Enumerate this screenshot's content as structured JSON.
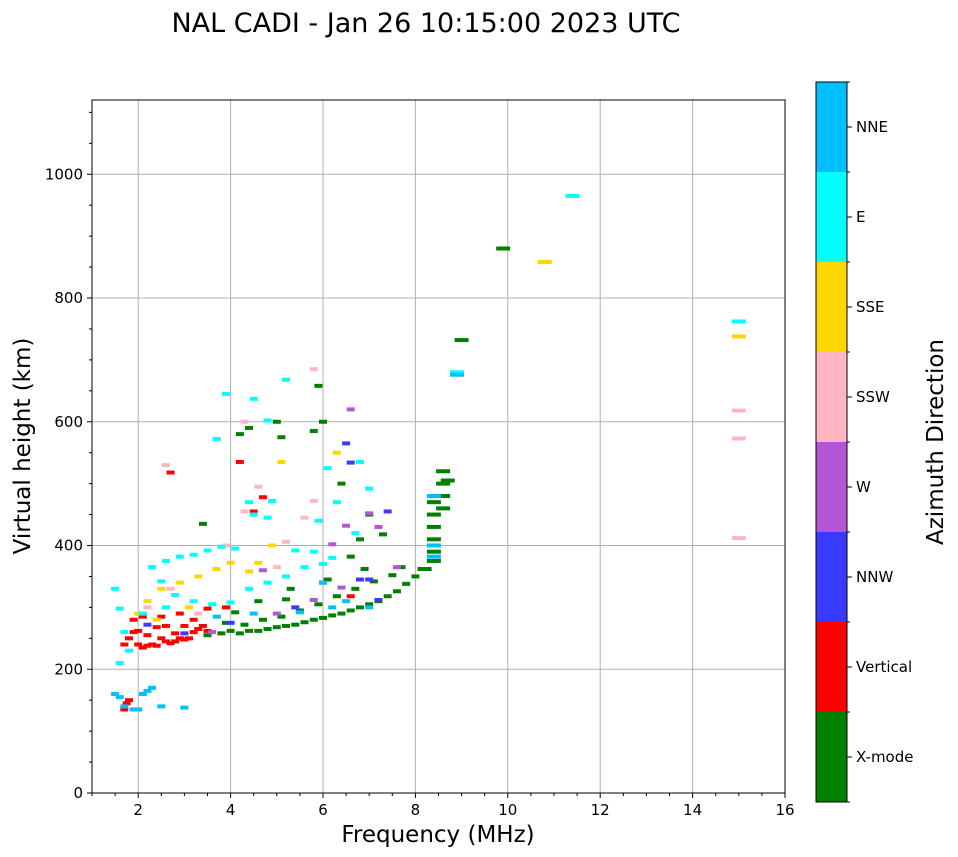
{
  "chart_data": {
    "type": "scatter",
    "title": "NAL CADI - Jan 26 10:15:00 2023 UTC",
    "xlabel": "Frequency (MHz)",
    "ylabel": "Virtual height (km)",
    "xlim": [
      1,
      16
    ],
    "ylim": [
      0,
      1120
    ],
    "x_ticks": [
      "2",
      "4",
      "6",
      "8",
      "10",
      "12",
      "14",
      "16"
    ],
    "x_tick_values": [
      2,
      4,
      6,
      8,
      10,
      12,
      14,
      16
    ],
    "y_ticks": [
      "0",
      "200",
      "400",
      "600",
      "800",
      "1000"
    ],
    "y_tick_values": [
      0,
      200,
      400,
      600,
      800,
      1000
    ],
    "grid": true,
    "colorbar": {
      "label": "Azimuth Direction",
      "categories": [
        {
          "name": "X-mode",
          "color": "#008000"
        },
        {
          "name": "Vertical",
          "color": "#ff0000"
        },
        {
          "name": "NNW",
          "color": "#3a3aff"
        },
        {
          "name": "W",
          "color": "#b455d6"
        },
        {
          "name": "SSW",
          "color": "#ffb6c1"
        },
        {
          "name": "SSE",
          "color": "#ffd700"
        },
        {
          "name": "E",
          "color": "#00ffff"
        },
        {
          "name": "NNE",
          "color": "#00bfff"
        }
      ]
    },
    "series": [
      {
        "name": "X-mode",
        "color": "#008000",
        "points": [
          [
            3.5,
            255
          ],
          [
            3.8,
            258
          ],
          [
            4.0,
            262
          ],
          [
            4.2,
            258
          ],
          [
            4.4,
            262
          ],
          [
            4.6,
            262
          ],
          [
            4.8,
            265
          ],
          [
            5.0,
            268
          ],
          [
            5.2,
            270
          ],
          [
            5.4,
            272
          ],
          [
            5.6,
            276
          ],
          [
            5.8,
            280
          ],
          [
            6.0,
            283
          ],
          [
            6.2,
            287
          ],
          [
            6.4,
            290
          ],
          [
            6.6,
            295
          ],
          [
            6.8,
            300
          ],
          [
            7.0,
            305
          ],
          [
            7.2,
            310
          ],
          [
            7.4,
            318
          ],
          [
            7.6,
            326
          ],
          [
            7.8,
            338
          ],
          [
            8.0,
            350
          ],
          [
            8.2,
            362
          ],
          [
            8.4,
            375
          ],
          [
            8.4,
            390
          ],
          [
            8.4,
            410
          ],
          [
            8.4,
            430
          ],
          [
            8.4,
            450
          ],
          [
            8.4,
            470
          ],
          [
            8.6,
            480
          ],
          [
            8.6,
            500
          ],
          [
            8.6,
            520
          ],
          [
            8.6,
            460
          ],
          [
            4.3,
            272
          ],
          [
            4.7,
            280
          ],
          [
            5.1,
            285
          ],
          [
            5.5,
            295
          ],
          [
            5.9,
            305
          ],
          [
            6.3,
            318
          ],
          [
            6.7,
            330
          ],
          [
            7.1,
            342
          ],
          [
            7.5,
            352
          ],
          [
            7.7,
            365
          ],
          [
            3.4,
            435
          ],
          [
            4.2,
            580
          ],
          [
            4.4,
            590
          ],
          [
            5.0,
            600
          ],
          [
            5.1,
            575
          ],
          [
            5.8,
            585
          ],
          [
            5.9,
            658
          ],
          [
            6.0,
            600
          ],
          [
            6.4,
            500
          ],
          [
            6.8,
            410
          ],
          [
            7.3,
            418
          ],
          [
            7.0,
            450
          ],
          [
            8.7,
            505
          ],
          [
            9.0,
            732
          ],
          [
            9.9,
            880
          ],
          [
            4.6,
            310
          ],
          [
            5.3,
            330
          ],
          [
            6.1,
            345
          ],
          [
            6.9,
            362
          ],
          [
            3.9,
            275
          ],
          [
            4.1,
            292
          ],
          [
            5.2,
            313
          ],
          [
            6.6,
            382
          ]
        ]
      },
      {
        "name": "Vertical",
        "color": "#ff0000",
        "points": [
          [
            1.7,
            135
          ],
          [
            1.75,
            145
          ],
          [
            1.8,
            150
          ],
          [
            1.7,
            240
          ],
          [
            1.8,
            250
          ],
          [
            1.9,
            260
          ],
          [
            2.0,
            240
          ],
          [
            2.1,
            235
          ],
          [
            2.2,
            238
          ],
          [
            2.3,
            240
          ],
          [
            2.4,
            238
          ],
          [
            2.5,
            250
          ],
          [
            2.6,
            245
          ],
          [
            2.7,
            242
          ],
          [
            2.8,
            245
          ],
          [
            2.9,
            250
          ],
          [
            3.0,
            248
          ],
          [
            3.1,
            250
          ],
          [
            3.2,
            260
          ],
          [
            3.3,
            265
          ],
          [
            3.4,
            270
          ],
          [
            3.5,
            262
          ],
          [
            2.0,
            262
          ],
          [
            2.2,
            255
          ],
          [
            2.4,
            268
          ],
          [
            2.6,
            270
          ],
          [
            2.8,
            258
          ],
          [
            3.0,
            270
          ],
          [
            3.2,
            280
          ],
          [
            1.9,
            280
          ],
          [
            2.1,
            285
          ],
          [
            2.5,
            285
          ],
          [
            2.9,
            290
          ],
          [
            3.5,
            298
          ],
          [
            3.9,
            300
          ],
          [
            2.7,
            518
          ],
          [
            4.2,
            535
          ],
          [
            4.5,
            455
          ],
          [
            4.7,
            478
          ],
          [
            6.6,
            318
          ]
        ]
      },
      {
        "name": "NNW",
        "color": "#3a3aff",
        "points": [
          [
            6.6,
            534
          ],
          [
            6.8,
            345
          ],
          [
            7.2,
            312
          ],
          [
            7.4,
            455
          ],
          [
            6.5,
            565
          ],
          [
            4.0,
            275
          ],
          [
            3.0,
            258
          ],
          [
            2.2,
            272
          ],
          [
            5.4,
            300
          ],
          [
            7.0,
            345
          ],
          [
            6.0,
            340
          ]
        ]
      },
      {
        "name": "W",
        "color": "#b455d6",
        "points": [
          [
            6.6,
            620
          ],
          [
            6.5,
            432
          ],
          [
            7.2,
            430
          ],
          [
            7.0,
            452
          ],
          [
            6.2,
            402
          ],
          [
            5.8,
            312
          ],
          [
            6.4,
            332
          ],
          [
            7.6,
            365
          ],
          [
            5.0,
            290
          ],
          [
            3.6,
            260
          ],
          [
            4.7,
            360
          ]
        ]
      },
      {
        "name": "SSW",
        "color": "#ffb6c1",
        "points": [
          [
            5.8,
            685
          ],
          [
            5.8,
            472
          ],
          [
            5.6,
            445
          ],
          [
            5.2,
            406
          ],
          [
            4.3,
            600
          ],
          [
            4.6,
            495
          ],
          [
            2.6,
            530
          ],
          [
            15.0,
            618
          ],
          [
            15.0,
            573
          ],
          [
            15.0,
            412
          ],
          [
            3.9,
            400
          ],
          [
            4.3,
            455
          ],
          [
            2.2,
            300
          ],
          [
            2.7,
            330
          ],
          [
            3.3,
            290
          ],
          [
            5.0,
            365
          ]
        ]
      },
      {
        "name": "SSE",
        "color": "#ffd700",
        "points": [
          [
            10.8,
            858
          ],
          [
            15.0,
            738
          ],
          [
            6.3,
            550
          ],
          [
            5.1,
            535
          ],
          [
            2.2,
            310
          ],
          [
            2.5,
            330
          ],
          [
            2.9,
            340
          ],
          [
            3.3,
            350
          ],
          [
            3.7,
            362
          ],
          [
            4.0,
            372
          ],
          [
            4.4,
            358
          ],
          [
            4.9,
            400
          ],
          [
            2.0,
            290
          ],
          [
            2.4,
            280
          ],
          [
            3.1,
            300
          ],
          [
            4.6,
            372
          ]
        ]
      },
      {
        "name": "E",
        "color": "#00ffff",
        "points": [
          [
            11.4,
            965
          ],
          [
            15.0,
            762
          ],
          [
            8.9,
            680
          ],
          [
            3.9,
            645
          ],
          [
            3.7,
            572
          ],
          [
            4.5,
            637
          ],
          [
            5.2,
            668
          ],
          [
            4.8,
            602
          ],
          [
            6.8,
            535
          ],
          [
            6.1,
            525
          ],
          [
            7.0,
            492
          ],
          [
            4.9,
            472
          ],
          [
            4.4,
            470
          ],
          [
            2.3,
            365
          ],
          [
            2.6,
            375
          ],
          [
            2.9,
            382
          ],
          [
            3.2,
            385
          ],
          [
            3.5,
            392
          ],
          [
            3.8,
            398
          ],
          [
            4.1,
            395
          ],
          [
            4.5,
            450
          ],
          [
            4.8,
            445
          ],
          [
            5.4,
            392
          ],
          [
            5.8,
            390
          ],
          [
            6.2,
            380
          ],
          [
            2.5,
            342
          ],
          [
            2.8,
            320
          ],
          [
            3.2,
            310
          ],
          [
            3.6,
            305
          ],
          [
            4.0,
            308
          ],
          [
            4.4,
            330
          ],
          [
            4.8,
            340
          ],
          [
            5.2,
            350
          ],
          [
            5.6,
            365
          ],
          [
            6.0,
            370
          ],
          [
            2.1,
            290
          ],
          [
            2.6,
            300
          ],
          [
            1.5,
            330
          ],
          [
            1.6,
            298
          ],
          [
            1.7,
            260
          ],
          [
            1.8,
            230
          ],
          [
            1.6,
            210
          ],
          [
            5.9,
            440
          ],
          [
            6.3,
            470
          ],
          [
            6.7,
            420
          ]
        ]
      },
      {
        "name": "NNE",
        "color": "#00bfff",
        "points": [
          [
            1.5,
            160
          ],
          [
            1.6,
            155
          ],
          [
            1.7,
            140
          ],
          [
            1.9,
            135
          ],
          [
            2.0,
            135
          ],
          [
            2.1,
            160
          ],
          [
            2.2,
            165
          ],
          [
            2.3,
            170
          ],
          [
            2.5,
            140
          ],
          [
            3.0,
            138
          ],
          [
            8.9,
            676
          ],
          [
            8.4,
            480
          ],
          [
            8.4,
            400
          ],
          [
            8.4,
            382
          ],
          [
            6.0,
            340
          ],
          [
            6.5,
            310
          ],
          [
            7.0,
            300
          ],
          [
            3.7,
            285
          ],
          [
            4.5,
            290
          ],
          [
            5.5,
            292
          ],
          [
            6.2,
            300
          ]
        ]
      }
    ]
  }
}
